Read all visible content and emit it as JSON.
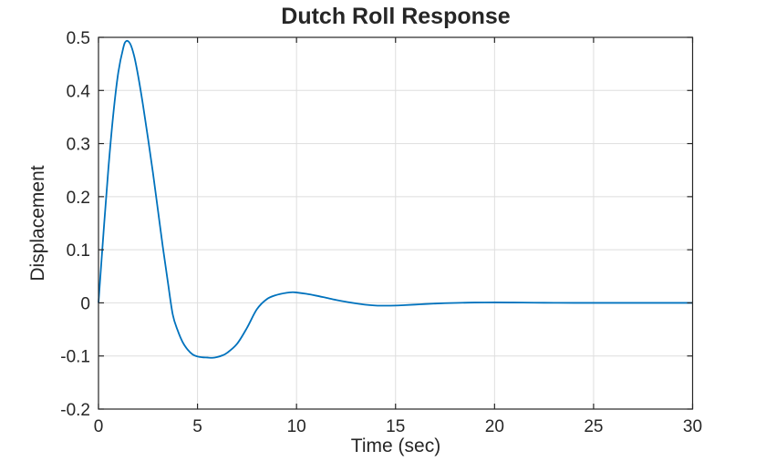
{
  "figure": {
    "title": "Dutch Roll Response"
  },
  "chart_data": {
    "type": "line",
    "title": "Dutch Roll Response",
    "xlabel": "Time (sec)",
    "ylabel": "Displacement",
    "xlim": [
      0,
      30
    ],
    "ylim": [
      -0.2,
      0.5
    ],
    "xticks": [
      0,
      5,
      10,
      15,
      20,
      25,
      30
    ],
    "xtick_labels": [
      "0",
      "5",
      "10",
      "15",
      "20",
      "25",
      "30"
    ],
    "yticks": [
      -0.2,
      -0.1,
      0,
      0.1,
      0.2,
      0.3,
      0.4,
      0.5
    ],
    "ytick_labels": [
      "-0.2",
      "-0.1",
      "0",
      "0.1",
      "0.2",
      "0.3",
      "0.4",
      "0.5"
    ],
    "grid": true,
    "box": true,
    "tick_direction": "in",
    "legend": "none",
    "colors": {
      "line": "#0072BD",
      "grid": "#dedede",
      "axis": "#262626",
      "text": "#262626",
      "background": "#ffffff"
    },
    "series": [
      {
        "name": "displacement",
        "x": [
          0,
          0.25,
          0.5,
          0.75,
          1,
          1.25,
          1.4,
          1.6,
          1.8,
          2,
          2.25,
          2.5,
          2.75,
          3,
          3.25,
          3.5,
          3.75,
          4,
          4.25,
          4.5,
          4.75,
          5,
          5.25,
          5.5,
          5.75,
          6,
          6.25,
          6.5,
          7,
          7.5,
          8,
          8.5,
          9,
          9.5,
          9.8,
          10,
          10.5,
          11,
          11.5,
          12,
          12.5,
          13,
          13.5,
          14,
          14.5,
          15,
          15.5,
          16,
          16.5,
          17,
          17.5,
          18,
          19,
          20,
          21,
          22,
          23,
          24,
          25,
          26,
          27,
          28,
          29,
          30
        ],
        "y": [
          0,
          0.13,
          0.253,
          0.356,
          0.434,
          0.48,
          0.493,
          0.488,
          0.465,
          0.428,
          0.372,
          0.31,
          0.245,
          0.175,
          0.105,
          0.04,
          -0.022,
          -0.052,
          -0.074,
          -0.088,
          -0.097,
          -0.101,
          -0.1025,
          -0.103,
          -0.1035,
          -0.102,
          -0.099,
          -0.094,
          -0.077,
          -0.047,
          -0.012,
          0.007,
          0.015,
          0.019,
          0.02,
          0.0195,
          0.017,
          0.0135,
          0.0095,
          0.0055,
          0.002,
          -0.001,
          -0.0035,
          -0.005,
          -0.0053,
          -0.005,
          -0.0042,
          -0.0032,
          -0.0022,
          -0.0013,
          -0.0006,
          -0.0001,
          0.0006,
          0.0008,
          0.0006,
          0.0003,
          0.0001,
          0,
          0,
          0,
          0,
          0,
          0,
          0
        ]
      }
    ],
    "key_points": {
      "first_peak": {
        "t": 1.4,
        "y": 0.493
      },
      "first_min": {
        "t": 5.7,
        "y": -0.103
      },
      "second_peak": {
        "t": 9.8,
        "y": 0.02
      },
      "steady_state": 0
    }
  }
}
